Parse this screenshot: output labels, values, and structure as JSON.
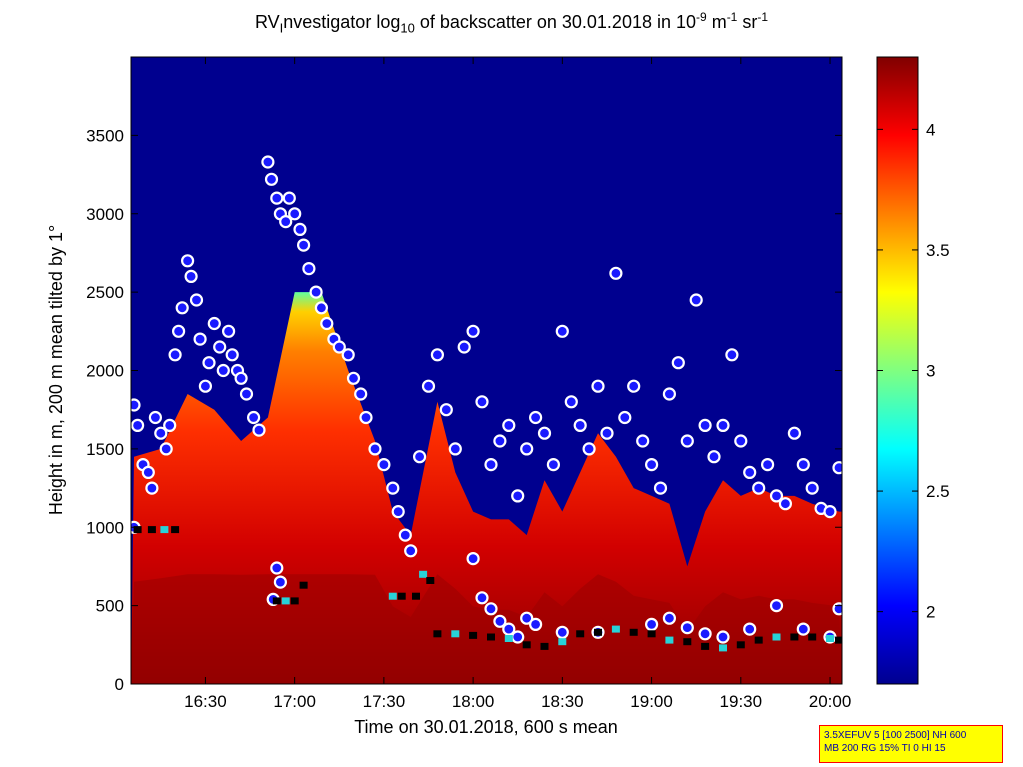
{
  "title": {
    "pre": "RV",
    "sub1": "I",
    "mid": "nvestigator log",
    "sub2": "10",
    "post": " of backscatter on 30.01.2018 in 10",
    "sup1": "-9",
    "post2": " m",
    "sup2": "-1",
    "post3": " sr",
    "sup3": "-1"
  },
  "infobox": {
    "line1": "3.5XEFUV 5 [100 2500] NH 600",
    "line2": "MB 200 RG 15% TI 0 HI 15"
  },
  "colors": {
    "background_sky": "#00008f",
    "marker_fill": "#1a1aff",
    "marker_ring": "#ffffff",
    "marker_edge": "#ff0000",
    "cloudbase_fill": "#000000",
    "cloudbase_alt": "#27d3d8"
  },
  "chart_data": {
    "type": "heatmap",
    "xlabel": "Time on 30.01.2018, 600 s mean",
    "ylabel": "Height in m, 200 m mean tilted by 1°",
    "xlim": [
      16.083,
      20.067
    ],
    "ylim": [
      0,
      4000
    ],
    "x_ticks": [
      "16:30",
      "17:00",
      "17:30",
      "18:00",
      "18:30",
      "19:00",
      "19:30",
      "20:00"
    ],
    "x_tick_values": [
      16.5,
      17.0,
      17.5,
      18.0,
      18.5,
      19.0,
      19.5,
      20.0
    ],
    "y_ticks": [
      0,
      500,
      1000,
      1500,
      2000,
      2500,
      3000,
      3500
    ],
    "colorbar": {
      "colormap": "jet",
      "range": [
        1.7,
        4.3
      ],
      "ticks": [
        2,
        2.5,
        3,
        3.5,
        4
      ],
      "tick_labels": [
        "2",
        "2.5",
        "3",
        "3.5",
        "4"
      ]
    },
    "grid": false,
    "aerosol_top": [
      [
        16.1,
        1450
      ],
      [
        16.25,
        1500
      ],
      [
        16.4,
        1850
      ],
      [
        16.55,
        1750
      ],
      [
        16.7,
        1550
      ],
      [
        16.85,
        1700
      ],
      [
        17.0,
        2500
      ],
      [
        17.15,
        2500
      ],
      [
        17.3,
        2000
      ],
      [
        17.45,
        1550
      ],
      [
        17.55,
        1100
      ],
      [
        17.65,
        950
      ],
      [
        17.8,
        1800
      ],
      [
        17.9,
        1350
      ],
      [
        18.0,
        1100
      ],
      [
        18.1,
        1050
      ],
      [
        18.2,
        1050
      ],
      [
        18.3,
        950
      ],
      [
        18.4,
        1300
      ],
      [
        18.5,
        1100
      ],
      [
        18.6,
        1350
      ],
      [
        18.7,
        1600
      ],
      [
        18.8,
        1450
      ],
      [
        18.9,
        1250
      ],
      [
        19.0,
        1200
      ],
      [
        19.1,
        1150
      ],
      [
        19.2,
        750
      ],
      [
        19.3,
        1100
      ],
      [
        19.4,
        1300
      ],
      [
        19.5,
        1200
      ],
      [
        19.6,
        1250
      ],
      [
        19.7,
        1200
      ],
      [
        19.8,
        1200
      ],
      [
        19.9,
        1150
      ],
      [
        20.05,
        1100
      ]
    ],
    "cloud_top_markers": [
      [
        16.1,
        1780
      ],
      [
        16.12,
        1650
      ],
      [
        16.15,
        1400
      ],
      [
        16.18,
        1350
      ],
      [
        16.2,
        1250
      ],
      [
        16.22,
        1700
      ],
      [
        16.25,
        1600
      ],
      [
        16.28,
        1500
      ],
      [
        16.3,
        1650
      ],
      [
        16.33,
        2100
      ],
      [
        16.35,
        2250
      ],
      [
        16.37,
        2400
      ],
      [
        16.4,
        2700
      ],
      [
        16.42,
        2600
      ],
      [
        16.45,
        2450
      ],
      [
        16.47,
        2200
      ],
      [
        16.5,
        1900
      ],
      [
        16.52,
        2050
      ],
      [
        16.55,
        2300
      ],
      [
        16.58,
        2150
      ],
      [
        16.6,
        2000
      ],
      [
        16.63,
        2250
      ],
      [
        16.65,
        2100
      ],
      [
        16.68,
        2000
      ],
      [
        16.7,
        1950
      ],
      [
        16.73,
        1850
      ],
      [
        16.77,
        1700
      ],
      [
        16.8,
        1620
      ],
      [
        16.85,
        3330
      ],
      [
        16.87,
        3220
      ],
      [
        16.9,
        3100
      ],
      [
        16.92,
        3000
      ],
      [
        16.95,
        2950
      ],
      [
        16.97,
        3100
      ],
      [
        17.0,
        3000
      ],
      [
        17.03,
        2900
      ],
      [
        17.05,
        2800
      ],
      [
        17.08,
        2650
      ],
      [
        17.12,
        2500
      ],
      [
        17.15,
        2400
      ],
      [
        17.18,
        2300
      ],
      [
        17.22,
        2200
      ],
      [
        17.25,
        2150
      ],
      [
        17.3,
        2100
      ],
      [
        17.33,
        1950
      ],
      [
        17.37,
        1850
      ],
      [
        17.4,
        1700
      ],
      [
        17.45,
        1500
      ],
      [
        17.5,
        1400
      ],
      [
        17.55,
        1250
      ],
      [
        17.58,
        1100
      ],
      [
        17.62,
        950
      ],
      [
        17.65,
        850
      ],
      [
        17.7,
        1450
      ],
      [
        17.75,
        1900
      ],
      [
        17.8,
        2100
      ],
      [
        17.85,
        1750
      ],
      [
        17.9,
        1500
      ],
      [
        17.95,
        2150
      ],
      [
        18.0,
        2250
      ],
      [
        18.05,
        1800
      ],
      [
        18.1,
        1400
      ],
      [
        18.15,
        1550
      ],
      [
        18.2,
        1650
      ],
      [
        18.25,
        1200
      ],
      [
        18.3,
        1500
      ],
      [
        18.35,
        1700
      ],
      [
        18.4,
        1600
      ],
      [
        18.45,
        1400
      ],
      [
        18.5,
        2250
      ],
      [
        18.55,
        1800
      ],
      [
        18.6,
        1650
      ],
      [
        18.65,
        1500
      ],
      [
        18.7,
        1900
      ],
      [
        18.75,
        1600
      ],
      [
        18.8,
        2620
      ],
      [
        18.85,
        1700
      ],
      [
        18.9,
        1900
      ],
      [
        18.95,
        1550
      ],
      [
        19.0,
        1400
      ],
      [
        19.05,
        1250
      ],
      [
        19.1,
        1850
      ],
      [
        19.15,
        2050
      ],
      [
        19.2,
        1550
      ],
      [
        19.25,
        2450
      ],
      [
        19.3,
        1650
      ],
      [
        19.35,
        1450
      ],
      [
        19.4,
        1650
      ],
      [
        19.45,
        2100
      ],
      [
        19.5,
        1550
      ],
      [
        19.55,
        1350
      ],
      [
        19.6,
        1250
      ],
      [
        19.65,
        1400
      ],
      [
        19.7,
        1200
      ],
      [
        19.75,
        1150
      ],
      [
        19.8,
        1600
      ],
      [
        19.85,
        1400
      ],
      [
        19.9,
        1250
      ],
      [
        19.95,
        1120
      ],
      [
        20.0,
        1100
      ],
      [
        20.05,
        1380
      ],
      [
        16.1,
        1000
      ],
      [
        16.88,
        540
      ],
      [
        16.9,
        740
      ],
      [
        16.92,
        650
      ],
      [
        18.0,
        800
      ],
      [
        18.05,
        550
      ],
      [
        18.1,
        480
      ],
      [
        18.15,
        400
      ],
      [
        18.2,
        350
      ],
      [
        18.25,
        300
      ],
      [
        18.3,
        420
      ],
      [
        18.35,
        380
      ],
      [
        18.5,
        330
      ],
      [
        18.7,
        330
      ],
      [
        19.0,
        380
      ],
      [
        19.1,
        420
      ],
      [
        19.2,
        360
      ],
      [
        19.3,
        320
      ],
      [
        19.4,
        300
      ],
      [
        19.55,
        350
      ],
      [
        19.7,
        500
      ],
      [
        19.85,
        350
      ],
      [
        20.0,
        300
      ],
      [
        20.05,
        480
      ]
    ],
    "cloud_base_markers": [
      [
        16.12,
        985
      ],
      [
        16.2,
        985
      ],
      [
        16.27,
        985
      ],
      [
        16.33,
        985
      ],
      [
        16.9,
        530
      ],
      [
        16.95,
        530
      ],
      [
        17.0,
        530
      ],
      [
        17.05,
        630
      ],
      [
        17.55,
        560
      ],
      [
        17.6,
        560
      ],
      [
        17.68,
        560
      ],
      [
        17.72,
        700
      ],
      [
        17.76,
        660
      ],
      [
        17.8,
        320
      ],
      [
        17.9,
        320
      ],
      [
        18.0,
        310
      ],
      [
        18.1,
        300
      ],
      [
        18.2,
        290
      ],
      [
        18.3,
        250
      ],
      [
        18.4,
        240
      ],
      [
        18.5,
        270
      ],
      [
        18.6,
        320
      ],
      [
        18.7,
        330
      ],
      [
        18.8,
        350
      ],
      [
        18.9,
        330
      ],
      [
        19.0,
        320
      ],
      [
        19.1,
        280
      ],
      [
        19.2,
        270
      ],
      [
        19.3,
        240
      ],
      [
        19.4,
        230
      ],
      [
        19.5,
        250
      ],
      [
        19.6,
        280
      ],
      [
        19.7,
        300
      ],
      [
        19.8,
        300
      ],
      [
        19.9,
        300
      ],
      [
        20.0,
        290
      ],
      [
        20.05,
        280
      ]
    ]
  }
}
